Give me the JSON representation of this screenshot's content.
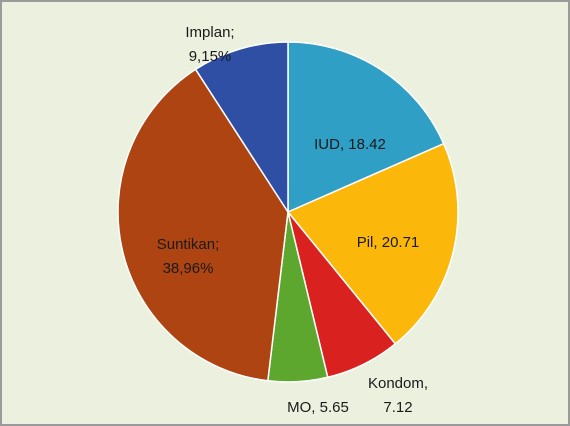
{
  "chart_data": {
    "type": "pie",
    "categories": [
      "IUD",
      "Pil",
      "Kondom",
      "MO",
      "Suntikan",
      "Implan"
    ],
    "values": [
      18.42,
      20.71,
      7.12,
      5.65,
      38.96,
      9.15
    ],
    "labels": [
      [
        "IUD, 18.42"
      ],
      [
        "Pil, 20.71"
      ],
      [
        "Kondom,",
        "7.12"
      ],
      [
        "MO, 5.65"
      ],
      [
        "Suntikan;",
        "38,96%"
      ],
      [
        "Implan;",
        "9,15%"
      ]
    ],
    "colors": [
      "#2f9fc6",
      "#fbb80a",
      "#d9221f",
      "#5ea72f",
      "#ae4412",
      "#2e4fa3"
    ]
  }
}
